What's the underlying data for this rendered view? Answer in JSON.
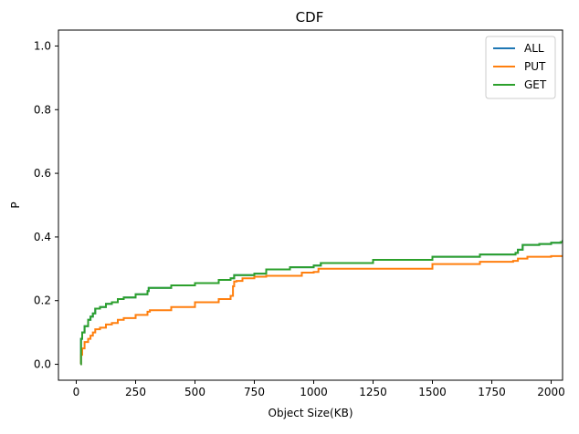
{
  "chart_data": {
    "type": "line",
    "title": "CDF",
    "xlabel": "Object Size(KB)",
    "ylabel": "P",
    "xlim": [
      -75,
      2048
    ],
    "ylim": [
      -0.05,
      1.05
    ],
    "xticks": [
      0,
      250,
      500,
      750,
      1000,
      1250,
      1500,
      1750,
      2000
    ],
    "xtick_labels": [
      "0",
      "250",
      "500",
      "750",
      "1000",
      "1250",
      "1500",
      "1750",
      "2000"
    ],
    "yticks": [
      0.0,
      0.2,
      0.4,
      0.6,
      0.8,
      1.0
    ],
    "ytick_labels": [
      "0.0",
      "0.2",
      "0.4",
      "0.6",
      "0.8",
      "1.0"
    ],
    "grid": false,
    "legend": "top-right",
    "series": [
      {
        "name": "ALL",
        "color": "#1f77b4",
        "x": [
          18,
          20,
          25,
          35,
          50,
          60,
          70,
          80,
          100,
          125,
          150,
          175,
          200,
          250,
          300,
          305,
          400,
          500,
          600,
          650,
          665,
          750,
          800,
          900,
          1000,
          1030,
          1250,
          1500,
          1700,
          1850,
          1860,
          1880,
          1950,
          2000,
          2040,
          2048
        ],
        "y": [
          0.0,
          0.08,
          0.1,
          0.12,
          0.14,
          0.15,
          0.16,
          0.175,
          0.18,
          0.19,
          0.195,
          0.205,
          0.21,
          0.22,
          0.23,
          0.24,
          0.248,
          0.255,
          0.265,
          0.27,
          0.28,
          0.285,
          0.298,
          0.305,
          0.31,
          0.318,
          0.328,
          0.338,
          0.345,
          0.35,
          0.36,
          0.375,
          0.378,
          0.382,
          0.384,
          0.39
        ]
      },
      {
        "name": "PUT",
        "color": "#ff7f0e",
        "x": [
          18,
          20,
          25,
          35,
          50,
          60,
          70,
          80,
          100,
          125,
          150,
          175,
          200,
          250,
          300,
          310,
          400,
          500,
          600,
          650,
          660,
          665,
          675,
          700,
          750,
          800,
          950,
          1000,
          1020,
          1500,
          1700,
          1840,
          1860,
          1900,
          2000,
          2048
        ],
        "y": [
          0.0,
          0.03,
          0.05,
          0.07,
          0.08,
          0.09,
          0.1,
          0.11,
          0.115,
          0.125,
          0.13,
          0.14,
          0.145,
          0.155,
          0.165,
          0.17,
          0.18,
          0.195,
          0.205,
          0.215,
          0.245,
          0.26,
          0.262,
          0.27,
          0.275,
          0.278,
          0.288,
          0.29,
          0.3,
          0.315,
          0.322,
          0.325,
          0.332,
          0.338,
          0.34,
          0.34
        ]
      },
      {
        "name": "GET",
        "color": "#2ca02c",
        "x": [
          18,
          20,
          25,
          35,
          50,
          60,
          70,
          80,
          100,
          125,
          150,
          175,
          200,
          250,
          300,
          305,
          400,
          500,
          600,
          650,
          665,
          750,
          800,
          900,
          1000,
          1030,
          1250,
          1500,
          1700,
          1850,
          1860,
          1880,
          1950,
          2000,
          2040,
          2048
        ],
        "y": [
          0.0,
          0.08,
          0.1,
          0.12,
          0.14,
          0.15,
          0.16,
          0.175,
          0.18,
          0.19,
          0.195,
          0.205,
          0.21,
          0.22,
          0.23,
          0.24,
          0.248,
          0.255,
          0.265,
          0.27,
          0.28,
          0.285,
          0.298,
          0.305,
          0.31,
          0.318,
          0.328,
          0.338,
          0.345,
          0.35,
          0.36,
          0.375,
          0.378,
          0.382,
          0.384,
          0.39
        ]
      }
    ]
  }
}
